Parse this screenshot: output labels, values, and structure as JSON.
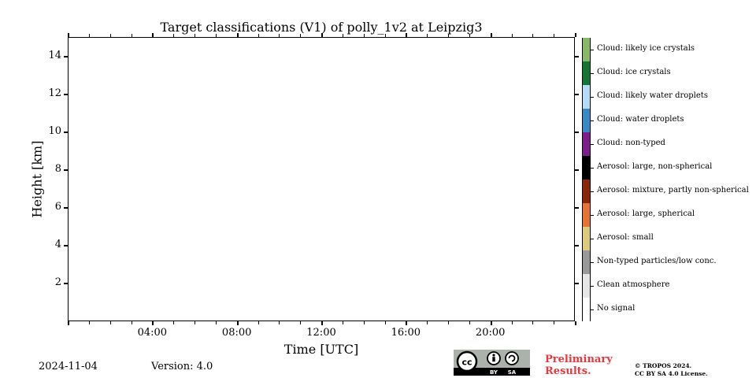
{
  "chart_data": {
    "type": "heatmap",
    "title": "Target classifications (V1) of polly_1v2 at Leipzig3",
    "xlabel": "Time [UTC]",
    "ylabel": "Height [km]",
    "x_tick_labels": [
      "04:00",
      "08:00",
      "12:00",
      "16:00",
      "20:00"
    ],
    "x_range_hours": [
      0,
      24
    ],
    "y_tick_labels": [
      "2",
      "4",
      "6",
      "8",
      "10",
      "12",
      "14"
    ],
    "ylim": [
      0,
      15
    ],
    "grid": false,
    "data": "empty (no data plotted)",
    "colorbar": {
      "position": "right",
      "classes": [
        {
          "label": "Cloud: likely ice crystals",
          "color": "#86b968"
        },
        {
          "label": "Cloud: ice crystals",
          "color": "#127634"
        },
        {
          "label": "Cloud: likely water droplets",
          "color": "#b5dcf6"
        },
        {
          "label": "Cloud: water droplets",
          "color": "#3889c8"
        },
        {
          "label": "Cloud: non-typed",
          "color": "#7e1e8c"
        },
        {
          "label": "Aerosol: large, non-spherical",
          "color": "#000000"
        },
        {
          "label": "Aerosol: mixture, partly non-spherical",
          "color": "#8a2708"
        },
        {
          "label": "Aerosol: large, spherical",
          "color": "#e77232"
        },
        {
          "label": "Aerosol: small",
          "color": "#decb7a"
        },
        {
          "label": "Non-typed particles/low conc.",
          "color": "#999999"
        },
        {
          "label": "Clean atmosphere",
          "color": "#e6e6e6"
        },
        {
          "label": "No signal",
          "color": "#ffffff"
        }
      ]
    }
  },
  "footer": {
    "date": "2024-11-04",
    "version": "Version: 4.0",
    "license_badge": {
      "icons": [
        "cc-icon",
        "by-icon",
        "sa-icon"
      ],
      "labels": [
        "BY",
        "SA"
      ]
    },
    "preliminary_line1": "Preliminary",
    "preliminary_line2": "Results.",
    "copyright_line1": "© TROPOS 2024.",
    "copyright_line2": "CC BY SA 4.0 License."
  }
}
